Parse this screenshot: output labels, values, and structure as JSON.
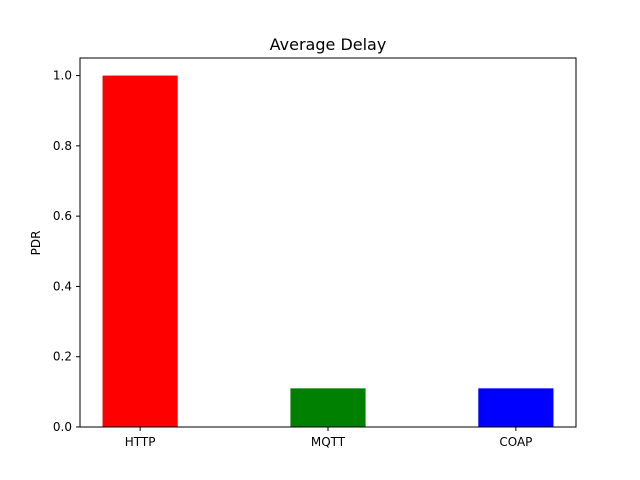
{
  "chart_data": {
    "type": "bar",
    "title": "Average Delay",
    "xlabel": "",
    "ylabel": "PDR",
    "categories": [
      "HTTP",
      "MQTT",
      "COAP"
    ],
    "values": [
      1.0,
      0.11,
      0.11
    ],
    "bar_colors": [
      "#ff0000",
      "#008000",
      "#0000ff"
    ],
    "ylim": [
      0,
      1.05
    ],
    "yticks": [
      0.0,
      0.2,
      0.4,
      0.6,
      0.8,
      1.0
    ],
    "ytick_labels": [
      "0.0",
      "0.2",
      "0.4",
      "0.6",
      "0.8",
      "1.0"
    ],
    "grid": false,
    "legend": "none"
  }
}
